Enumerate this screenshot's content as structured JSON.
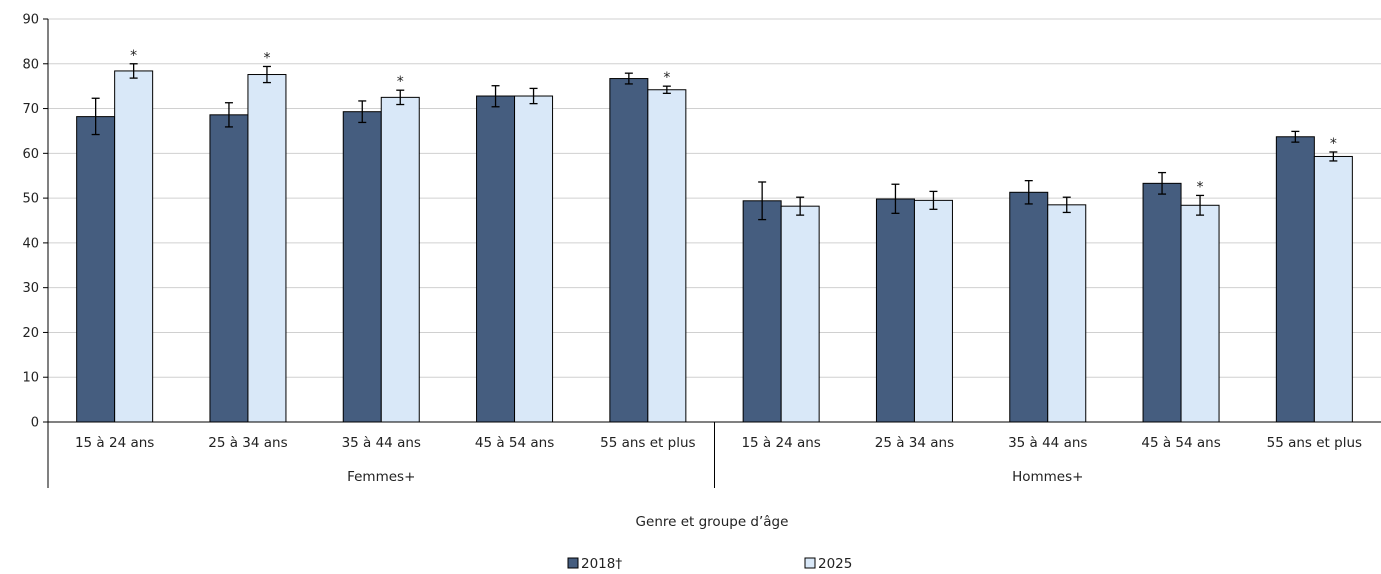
{
  "chart_data": {
    "type": "bar",
    "title": "",
    "xlabel": "Genre et groupe d’âge",
    "ylabel": "",
    "ylim": [
      0,
      90
    ],
    "yticks": [
      0,
      10,
      20,
      30,
      40,
      50,
      60,
      70,
      80,
      90
    ],
    "grid": true,
    "legend_position": "bottom",
    "groups": [
      {
        "label": "Femmes+",
        "categories": [
          "15 à 24 ans",
          "25 à 34 ans",
          "35 à 44 ans",
          "45 à 54 ans",
          "55 ans et plus"
        ]
      },
      {
        "label": "Hommes+",
        "categories": [
          "15 à 24 ans",
          "25 à 34 ans",
          "35 à 44 ans",
          "45 à 54 ans",
          "55 ans et plus"
        ]
      }
    ],
    "series": [
      {
        "name": "2018†",
        "color": "#455d7f",
        "values": [
          68.2,
          68.6,
          69.3,
          72.8,
          76.7,
          49.4,
          49.8,
          51.3,
          53.3,
          63.7
        ],
        "error_low": [
          64.2,
          65.9,
          66.9,
          70.4,
          75.5,
          45.2,
          46.6,
          48.7,
          50.9,
          62.5
        ],
        "error_high": [
          72.3,
          71.3,
          71.7,
          75.1,
          77.9,
          53.6,
          53.1,
          53.9,
          55.7,
          64.9
        ]
      },
      {
        "name": "2025",
        "color": "#d9e8f8",
        "values": [
          78.4,
          77.6,
          72.5,
          72.8,
          74.2,
          48.2,
          49.5,
          48.5,
          48.4,
          59.3
        ],
        "error_low": [
          76.8,
          75.8,
          70.9,
          71.1,
          73.4,
          46.2,
          47.5,
          46.8,
          46.2,
          58.3
        ],
        "error_high": [
          80.0,
          79.4,
          74.1,
          74.5,
          75.0,
          50.2,
          51.5,
          50.2,
          50.6,
          60.3
        ]
      }
    ],
    "significance_marker": "*",
    "significant_2025": [
      true,
      true,
      true,
      false,
      true,
      false,
      false,
      false,
      true,
      true
    ]
  }
}
